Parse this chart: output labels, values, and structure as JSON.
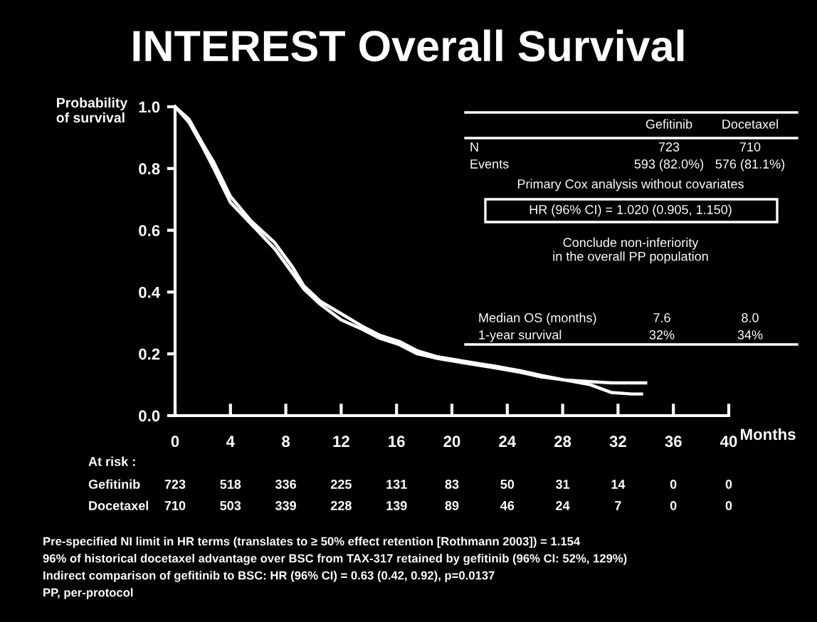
{
  "chart_data": {
    "type": "line",
    "title": "INTEREST Overall Survival",
    "ylabel": "Probability\nof survival",
    "xlabel": "Months",
    "xlim": [
      0,
      40
    ],
    "xticks": [
      0,
      4,
      8,
      12,
      16,
      20,
      24,
      28,
      32,
      36,
      40
    ],
    "ylim": [
      0,
      1.0
    ],
    "yticks": [
      {
        "value": 0,
        "label": "0.0"
      },
      {
        "value": 0.2,
        "label": "0.2"
      },
      {
        "value": 0.4,
        "label": "0.4"
      },
      {
        "value": 0.6,
        "label": "0.6"
      },
      {
        "value": 0.8,
        "label": "0.8"
      },
      {
        "value": 1.0,
        "label": "1.0"
      }
    ],
    "grid": false,
    "legend": false,
    "marker": "none",
    "line_style": "solid",
    "series": [
      {
        "color": "#ffffff",
        "x": [
          0,
          1,
          2,
          2.8,
          4,
          5.5,
          7.2,
          8.5,
          9.3,
          10.5,
          12,
          13.5,
          14.8,
          16.2,
          17.5,
          19,
          21,
          23.1,
          25,
          26.5,
          28.2,
          30,
          31.5,
          33,
          34
        ],
        "values": [
          1.0,
          0.95,
          0.87,
          0.8,
          0.69,
          0.62,
          0.54,
          0.46,
          0.41,
          0.36,
          0.31,
          0.28,
          0.25,
          0.23,
          0.2,
          0.185,
          0.17,
          0.155,
          0.14,
          0.125,
          0.115,
          0.11,
          0.106,
          0.106,
          0.106
        ]
      },
      {
        "color": "#ffffff",
        "x": [
          0,
          1,
          2,
          2.8,
          4,
          5.5,
          7.2,
          8.5,
          9.3,
          10.5,
          12,
          13.5,
          14.8,
          16.2,
          17.5,
          19,
          21,
          23.1,
          25,
          26.5,
          28.2,
          30,
          31.5,
          33,
          33.7
        ],
        "values": [
          1.0,
          0.96,
          0.88,
          0.82,
          0.71,
          0.63,
          0.56,
          0.48,
          0.42,
          0.37,
          0.33,
          0.29,
          0.26,
          0.24,
          0.21,
          0.19,
          0.175,
          0.16,
          0.145,
          0.13,
          0.115,
          0.1,
          0.075,
          0.07,
          0.07
        ]
      }
    ],
    "annotations": [
      "At risk :",
      "Gefitinib 723 518 336 225 131 83 50 31 14 0 0",
      "Docetaxel 710 503 339 228 139 89 46 24 7 0 0",
      "Pre-specified NI limit in HR terms (translates to ≥ 50% effect retention [Rothmann 2003]) = 1.154",
      "96% of historical docetaxel advantage over BSC from TAX-317 retained by gefitinib (96% CI: 52%, 129%)",
      "Indirect comparison of gefitinib to BSC: HR (96% CI) = 0.63 (0.42, 0.92), p=0.0137",
      "PP, per-protocol",
      "Gefitinib",
      "Docetaxel",
      "N",
      "723",
      "710",
      "Events",
      "593 (82.0%)",
      "576 (81.1%)",
      "Primary Cox analysis without covariates",
      "HR (96% CI) = 1.020 (0.905, 1.150)",
      "Conclude non-inferiority\nin the overall PP population",
      "Median OS (months)",
      "7.6",
      "8.0",
      "1-year survival",
      "32%",
      "34%"
    ]
  }
}
